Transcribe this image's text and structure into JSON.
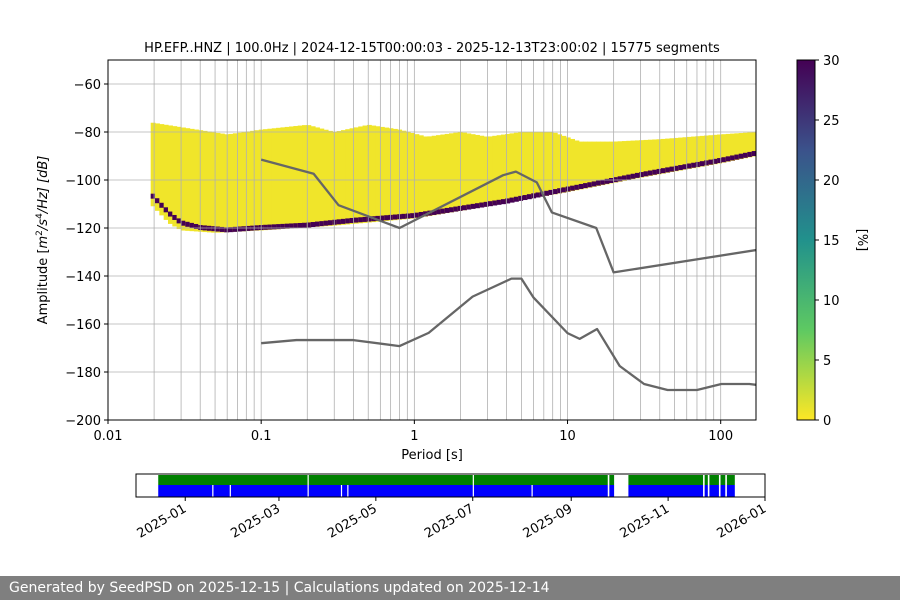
{
  "footer": "Generated by SeedPSD on 2025-12-15 | Calculations updated on 2025-12-14",
  "colors": {
    "viridis": [
      "#fde725",
      "#5ec962",
      "#21918c",
      "#3b528b",
      "#440154"
    ],
    "noise_model": "#666666",
    "coverage_top": "#008000",
    "coverage_bottom": "#0000ff",
    "grid": "#b0b0b0"
  },
  "chart_data": [
    {
      "type": "heatmap",
      "title": "HP.EFP..HNZ | 100.0Hz | 2024-12-15T00:00:03 - 2025-12-13T23:00:02 | 15775 segments",
      "xlabel": "Period [s]",
      "ylabel_parts": {
        "prefix": "Amplitude [",
        "m": "m",
        "exp1": "2",
        "mid": "/s",
        "exp2": "4",
        "suffix": "/Hz] [dB]"
      },
      "x_scale": "log",
      "xlim": [
        0.01,
        170
      ],
      "ylim": [
        -200,
        -50
      ],
      "x_ticks": [
        {
          "v": 0.01,
          "label": "0.01"
        },
        {
          "v": 0.1,
          "label": "0.1"
        },
        {
          "v": 1,
          "label": "1"
        },
        {
          "v": 10,
          "label": "10"
        },
        {
          "v": 100,
          "label": "100"
        }
      ],
      "y_ticks": [
        {
          "v": -60,
          "label": "−60"
        },
        {
          "v": -80,
          "label": "−80"
        },
        {
          "v": -100,
          "label": "−100"
        },
        {
          "v": -120,
          "label": "−120"
        },
        {
          "v": -140,
          "label": "−140"
        },
        {
          "v": -160,
          "label": "−160"
        },
        {
          "v": -180,
          "label": "−180"
        },
        {
          "v": -200,
          "label": "−200"
        }
      ],
      "grid": true,
      "period_range": [
        0.019,
        170
      ],
      "psd_mode": [
        [
          0.019,
          -106
        ],
        [
          0.025,
          -114
        ],
        [
          0.03,
          -118
        ],
        [
          0.04,
          -120
        ],
        [
          0.06,
          -121
        ],
        [
          0.1,
          -120
        ],
        [
          0.2,
          -119
        ],
        [
          0.4,
          -117
        ],
        [
          1,
          -115
        ],
        [
          2,
          -112
        ],
        [
          4,
          -109
        ],
        [
          10,
          -104
        ],
        [
          30,
          -98
        ],
        [
          100,
          -92
        ],
        [
          170,
          -89
        ]
      ],
      "psd_upper": [
        [
          0.019,
          -76
        ],
        [
          0.03,
          -78
        ],
        [
          0.06,
          -81
        ],
        [
          0.1,
          -79
        ],
        [
          0.2,
          -77
        ],
        [
          0.3,
          -80
        ],
        [
          0.5,
          -77
        ],
        [
          0.8,
          -79
        ],
        [
          1.2,
          -82
        ],
        [
          2,
          -80
        ],
        [
          3,
          -82
        ],
        [
          5,
          -80
        ],
        [
          8,
          -80
        ],
        [
          12,
          -84
        ],
        [
          20,
          -84
        ],
        [
          40,
          -83
        ],
        [
          100,
          -81
        ],
        [
          170,
          -80
        ]
      ],
      "psd_lower": [
        [
          0.019,
          -110
        ],
        [
          0.025,
          -118
        ],
        [
          0.03,
          -121
        ],
        [
          0.05,
          -122
        ],
        [
          0.1,
          -121
        ],
        [
          0.3,
          -119
        ],
        [
          1,
          -116
        ],
        [
          3,
          -111
        ],
        [
          10,
          -105
        ],
        [
          30,
          -99
        ],
        [
          100,
          -93
        ],
        [
          170,
          -90
        ]
      ],
      "colorbar": {
        "label": "[%]",
        "range": [
          0,
          30
        ],
        "ticks": [
          {
            "v": 0,
            "label": "0"
          },
          {
            "v": 5,
            "label": "5"
          },
          {
            "v": 10,
            "label": "10"
          },
          {
            "v": 15,
            "label": "15"
          },
          {
            "v": 20,
            "label": "20"
          },
          {
            "v": 25,
            "label": "25"
          },
          {
            "v": 30,
            "label": "30"
          }
        ]
      },
      "noise_models": [
        {
          "points": [
            [
              0.1,
              -91.5
            ],
            [
              0.22,
              -97.4
            ],
            [
              0.32,
              -110.5
            ],
            [
              0.8,
              -120
            ],
            [
              3.8,
              -98
            ],
            [
              4.6,
              -96.5
            ],
            [
              6.3,
              -101
            ],
            [
              7.9,
              -113.5
            ],
            [
              15.4,
              -120
            ],
            [
              20,
              -138.5
            ],
            [
              354.8,
              -126
            ]
          ]
        },
        {
          "points": [
            [
              0.1,
              -168
            ],
            [
              0.17,
              -166.7
            ],
            [
              0.4,
              -166.7
            ],
            [
              0.8,
              -169.2
            ],
            [
              1.24,
              -163.7
            ],
            [
              2.4,
              -148.6
            ],
            [
              4.3,
              -141.1
            ],
            [
              5,
              -141.1
            ],
            [
              6,
              -149
            ],
            [
              10,
              -163.8
            ],
            [
              12,
              -166.2
            ],
            [
              15.6,
              -162.1
            ],
            [
              21.9,
              -177.5
            ],
            [
              31.6,
              -185
            ],
            [
              45,
              -187.5
            ],
            [
              70,
              -187.5
            ],
            [
              101,
              -185
            ],
            [
              154,
              -185
            ],
            [
              328,
              -187.5
            ]
          ]
        }
      ]
    },
    {
      "type": "timeline",
      "x_ticks": [
        "2025-01",
        "2025-03",
        "2025-05",
        "2025-07",
        "2025-09",
        "2025-11",
        "2026-01"
      ],
      "range": [
        "2024-12-01",
        "2026-01-01"
      ],
      "coverage": [
        [
          "2024-12-15",
          "2025-09-24"
        ],
        [
          "2025-09-25",
          "2025-09-28"
        ],
        [
          "2025-10-07",
          "2025-11-23"
        ],
        [
          "2025-11-24",
          "2025-11-26"
        ],
        [
          "2025-11-27",
          "2025-12-03"
        ],
        [
          "2025-12-04",
          "2025-12-07"
        ],
        [
          "2025-12-08",
          "2025-12-13"
        ]
      ],
      "blue_gaps": [
        "2025-01-18",
        "2025-01-29",
        "2025-03-19",
        "2025-04-09",
        "2025-04-13",
        "2025-07-01",
        "2025-08-07"
      ],
      "green_marks": [
        "2025-03-19",
        "2025-07-01"
      ]
    }
  ]
}
